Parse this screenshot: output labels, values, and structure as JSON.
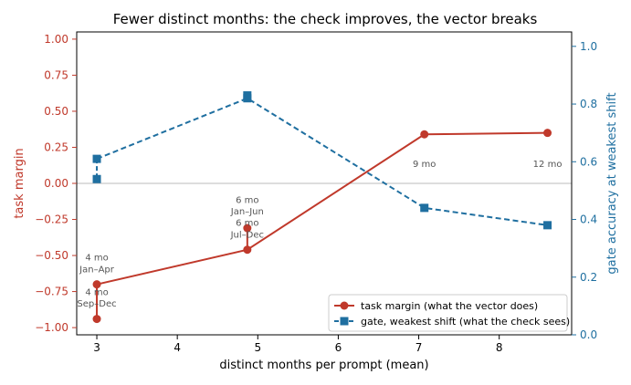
{
  "chart_data": {
    "type": "line",
    "title": "Fewer distinct months: the check improves, the vector breaks",
    "xlabel": "distinct months per prompt (mean)",
    "ylabel_left": "task margin",
    "ylabel_right": "gate accuracy at weakest shift",
    "xlim": [
      2.75,
      8.9
    ],
    "ylim_left": [
      -1.05,
      1.05
    ],
    "ylim_right": [
      0.0,
      1.05
    ],
    "xticks": [
      "3",
      "4",
      "5",
      "6",
      "7",
      "8"
    ],
    "yticks_left": [
      "1.00",
      "0.75",
      "0.50",
      "0.25",
      "0.00",
      "−0.25",
      "−0.50",
      "−0.75",
      "−1.00"
    ],
    "yticks_right": [
      "0.0",
      "0.2",
      "0.4",
      "0.6",
      "0.8",
      "1.0"
    ],
    "colors": {
      "left_axis": "#c0392b",
      "right_axis": "#1f6fa0",
      "task": "#c0392b",
      "gate": "#1f6fa0",
      "zero_line": "#bbbbbb"
    },
    "series": [
      {
        "name": "task margin (what the vector does)",
        "axis": "left",
        "style": "solid",
        "marker": "circle",
        "x": [
          3.0,
          4.87,
          7.07,
          8.6
        ],
        "y": [
          -0.7,
          -0.46,
          0.34,
          0.35
        ],
        "extra_points": [
          {
            "x": 3.0,
            "y": -0.94
          },
          {
            "x": 4.87,
            "y": -0.31
          }
        ]
      },
      {
        "name": "gate, weakest shift (what the check sees)",
        "axis": "right",
        "style": "dashed",
        "marker": "square",
        "x": [
          3.0,
          4.87,
          7.07,
          8.6
        ],
        "y": [
          0.61,
          0.82,
          0.44,
          0.38
        ],
        "extra_points": [
          {
            "x": 3.0,
            "y": 0.54
          },
          {
            "x": 4.87,
            "y": 0.83
          }
        ]
      }
    ],
    "annotations": [
      {
        "text": "4 mo",
        "x": 3.0,
        "y": -0.51
      },
      {
        "text": "Jan–Apr",
        "x": 3.0,
        "y": -0.59
      },
      {
        "text": "4 mo",
        "x": 3.0,
        "y": -0.75
      },
      {
        "text": "Sep–Dec",
        "x": 3.0,
        "y": -0.83
      },
      {
        "text": "6 mo",
        "x": 4.87,
        "y": -0.11
      },
      {
        "text": "Jan–Jun",
        "x": 4.87,
        "y": -0.19
      },
      {
        "text": "6 mo",
        "x": 4.87,
        "y": -0.27
      },
      {
        "text": "Jul–Dec",
        "x": 4.87,
        "y": -0.35
      },
      {
        "text": "9 mo",
        "x": 7.07,
        "y": 0.14
      },
      {
        "text": "12 mo",
        "x": 8.6,
        "y": 0.14
      }
    ],
    "legend_position": "lower-right",
    "grid": false
  }
}
